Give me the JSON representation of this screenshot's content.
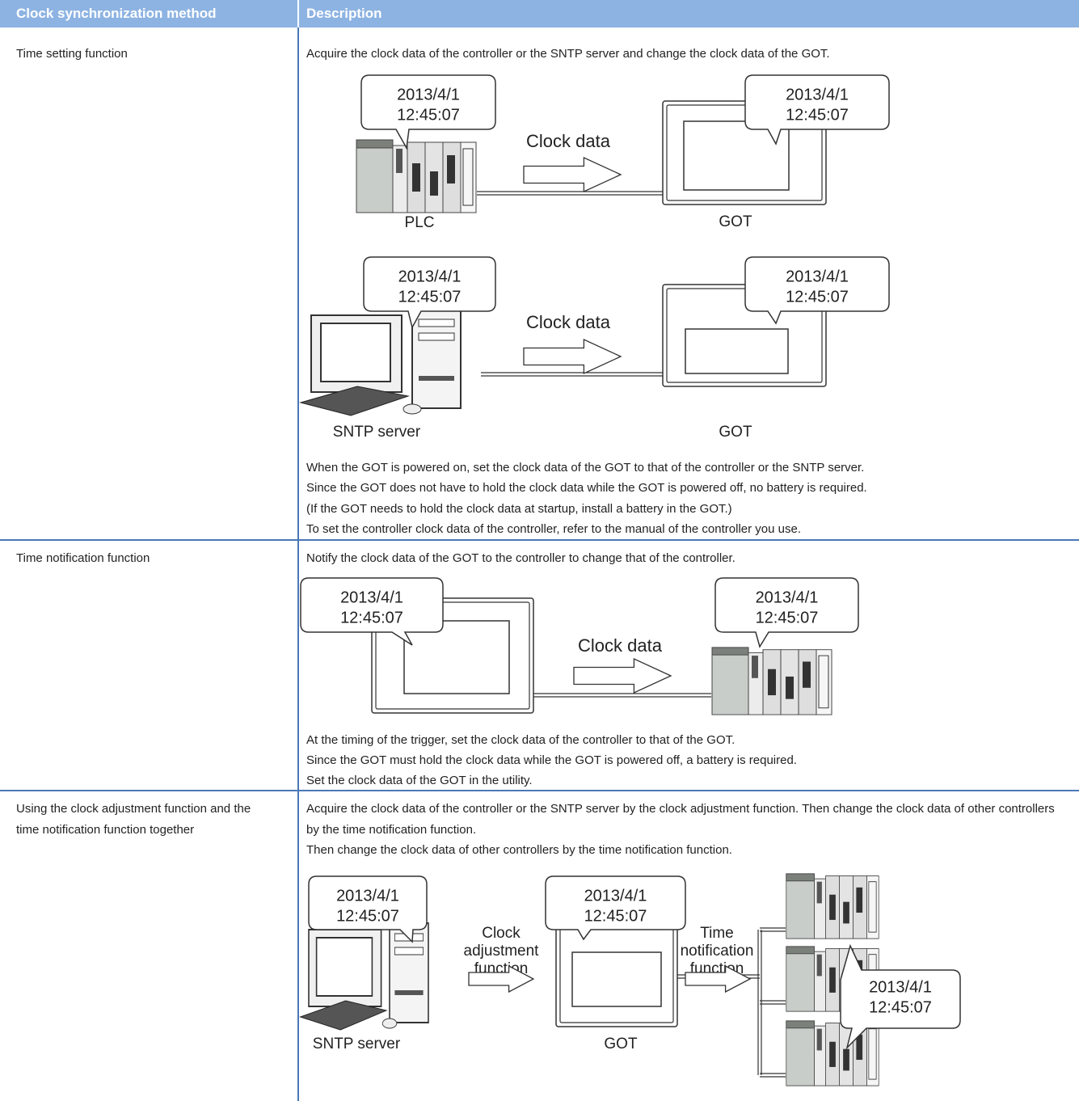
{
  "table": {
    "headers": [
      "Clock synchronization method",
      "Description"
    ],
    "rows": [
      {
        "method": "Time setting function",
        "description": "Acquire the clock data of the controller or the SNTP server and change the clock data of the GOT.",
        "diagrams": [
          {
            "bubbles": [
              [
                "2013/4/1",
                "12:45:07"
              ],
              [
                "2013/4/1",
                "12:45:07"
              ]
            ],
            "arrows": [
              [
                "Clock data"
              ]
            ],
            "labels": [
              "PLC",
              "GOT"
            ]
          },
          {
            "bubbles": [
              [
                "2013/4/1",
                "12:45:07"
              ],
              [
                "2013/4/1",
                "12:45:07"
              ]
            ],
            "arrows": [
              [
                "Clock data"
              ]
            ],
            "labels": [
              "SNTP server",
              "GOT"
            ]
          }
        ],
        "notes": [
          "When the GOT is powered on, set the clock data of the GOT to that of the controller or the SNTP server.",
          "Since the GOT does not have to hold the clock data while the GOT is powered off, no battery is required.",
          "(If the GOT needs to hold the clock data at startup, install a battery in the GOT.)",
          "To set the controller clock data of the controller, refer to the manual of the controller you use."
        ]
      },
      {
        "method": "Time notification function",
        "description": "Notify the clock data of the GOT to the controller to change that of the controller.",
        "diagrams": [
          {
            "bubbles": [
              [
                "2013/4/1",
                "12:45:07"
              ],
              [
                "2013/4/1",
                "12:45:07"
              ]
            ],
            "arrows": [
              [
                "Clock data"
              ]
            ]
          }
        ],
        "notes": [
          "At the timing of the trigger, set the clock data of the controller to that of the GOT.",
          "Since the GOT must hold the clock data while the GOT is powered off, a battery is required.",
          "Set the clock data of the GOT in the utility."
        ]
      },
      {
        "method": "Using the clock adjustment function and the time notification function together",
        "description": [
          "Acquire the clock data of the controller or the SNTP server by the clock adjustment function. Then change the clock data of other controllers by the time notification function.",
          "Then change the clock data of other controllers by the time notification function."
        ],
        "diagrams": [
          {
            "bubbles": [
              [
                "2013/4/1",
                "12:45:07"
              ],
              [
                "2013/4/1",
                "12:45:07"
              ],
              [
                "2013/4/1",
                "12:45:07"
              ]
            ],
            "arrows": [
              [
                "Clock",
                "adjustment",
                "function"
              ],
              [
                "Time",
                "notification",
                "function"
              ]
            ],
            "labels": [
              "SNTP server",
              "GOT"
            ]
          }
        ]
      }
    ]
  }
}
